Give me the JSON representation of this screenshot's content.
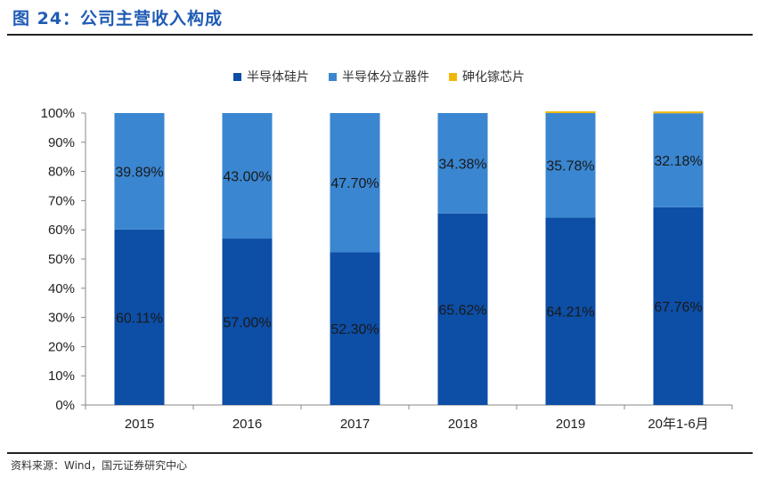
{
  "title": "图 24：公司主营收入构成",
  "source": "资料来源：Wind，国元证券研究中心",
  "chart_data": {
    "type": "bar",
    "stacked": true,
    "percent": true,
    "categories": [
      "2015",
      "2016",
      "2017",
      "2018",
      "2019",
      "20年1-6月"
    ],
    "series": [
      {
        "name": "半导体硅片",
        "color": "#0d4ea6",
        "values": [
          60.11,
          57.0,
          52.3,
          65.62,
          64.21,
          67.76
        ],
        "labels": [
          "60.11%",
          "57.00%",
          "52.30%",
          "65.62%",
          "64.21%",
          "67.76%"
        ]
      },
      {
        "name": "半导体分立器件",
        "color": "#3a86d1",
        "values": [
          39.89,
          43.0,
          47.7,
          34.38,
          35.78,
          32.18
        ],
        "labels": [
          "39.89%",
          "43.00%",
          "47.70%",
          "34.38%",
          "35.78%",
          "32.18%"
        ]
      },
      {
        "name": "砷化镓芯片",
        "color": "#f2b707",
        "values": [
          0,
          0,
          0,
          0,
          0.6,
          0.6
        ]
      }
    ],
    "yticks": [
      "0%",
      "10%",
      "20%",
      "30%",
      "40%",
      "50%",
      "60%",
      "70%",
      "80%",
      "90%",
      "100%"
    ],
    "ylim": [
      0,
      100
    ],
    "legend": "top",
    "grid": false
  }
}
